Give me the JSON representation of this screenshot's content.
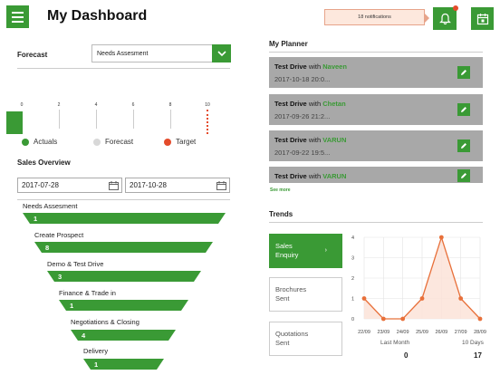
{
  "header": {
    "title": "My Dashboard",
    "notification_text": "18 notifications"
  },
  "forecast": {
    "label": "Forecast",
    "selected": "Needs Assesment",
    "scale": [
      "0",
      "2",
      "4",
      "6",
      "8",
      "10"
    ],
    "actual_value": 1,
    "target_value": 10,
    "legend": {
      "actuals": "Actuals",
      "forecast": "Forecast",
      "target": "Target"
    },
    "colors": {
      "actuals": "#3a9a35",
      "forecast": "#d8d8d8",
      "target": "#e44b2b"
    }
  },
  "sales_overview": {
    "label": "Sales Overview",
    "from_date": "2017-07-28",
    "to_date": "2017-10-28",
    "stages": [
      {
        "name": "Needs Assesment",
        "count": "1"
      },
      {
        "name": "Create Prospect",
        "count": "8"
      },
      {
        "name": "Demo & Test Drive",
        "count": "3"
      },
      {
        "name": "Finance & Trade in",
        "count": "1"
      },
      {
        "name": "Negotiations & Closing",
        "count": "4"
      },
      {
        "name": "Delivery",
        "count": "1"
      }
    ]
  },
  "planner": {
    "title": "My Planner",
    "with_word": "with",
    "items": [
      {
        "title": "Test Drive",
        "person": "Naveen",
        "time": "2017-10-18 20:0..."
      },
      {
        "title": "Test Drive",
        "person": "Chetan",
        "time": "2017-09-26 21:2..."
      },
      {
        "title": "Test Drive",
        "person": "VARUN",
        "time": "2017-09-22 19:5..."
      },
      {
        "title": "Test Drive",
        "person": "VARUN",
        "time": ""
      }
    ],
    "see_more": "See more"
  },
  "trends": {
    "title": "Trends",
    "tabs": [
      {
        "line1": "Sales",
        "line2": "Enquiry",
        "active": true
      },
      {
        "line1": "Brochures",
        "line2": "Sent",
        "active": false
      },
      {
        "line1": "Quotations",
        "line2": "Sent",
        "active": false
      }
    ],
    "footer": {
      "last_month_label": "Last Month",
      "last_month_value": "0",
      "ten_days_label": "10 Days",
      "ten_days_value": "17"
    }
  },
  "chart_data": {
    "type": "line",
    "categories": [
      "22/09",
      "23/09",
      "24/09",
      "25/09",
      "26/09",
      "27/09",
      "28/09"
    ],
    "values": [
      1,
      0,
      0,
      1,
      4,
      1,
      0
    ],
    "yticks": [
      "0",
      "1",
      "2",
      "3",
      "4"
    ],
    "ylim": [
      0,
      4
    ],
    "color": "#e8703a",
    "fill": "#fbe3d8",
    "grid": true
  }
}
